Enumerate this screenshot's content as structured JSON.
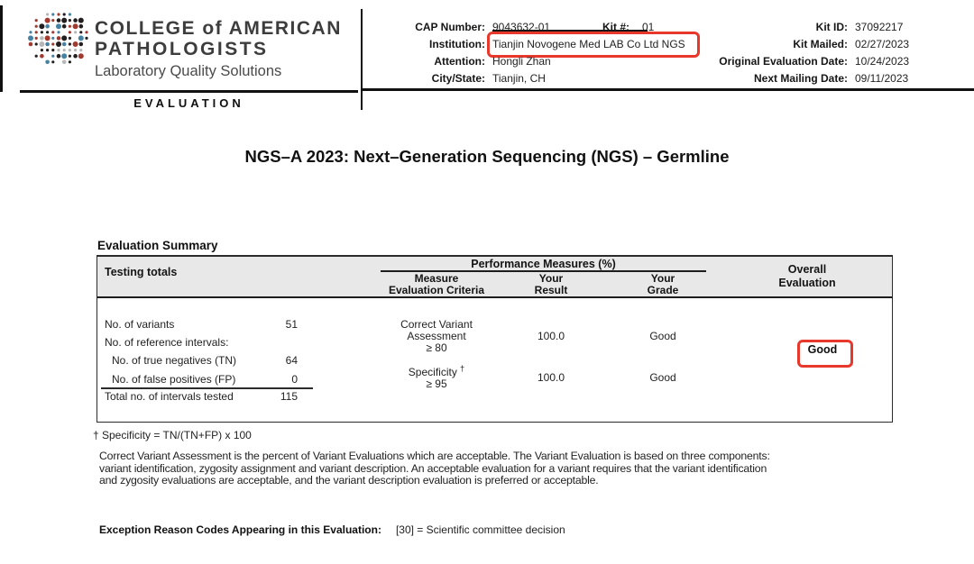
{
  "brand": {
    "line1": "COLLEGE of AMERICAN",
    "line2": "PATHOLOGISTS",
    "tagline": "Laboratory Quality Solutions",
    "section": "EVALUATION",
    "logo_palette": [
      "#231f20",
      "#4682a3",
      "#a23a30",
      "#b7b7b7"
    ]
  },
  "header": {
    "fields_left": [
      {
        "label": "CAP Number:",
        "value": "9043632-01"
      },
      {
        "label": "Institution:",
        "value": "Tianjin Novogene Med LAB Co Ltd NGS"
      },
      {
        "label": "Attention:",
        "value": "Hongli Zhan"
      },
      {
        "label": "City/State:",
        "value": "Tianjin, CH"
      }
    ],
    "kit_number": {
      "label": "Kit #:",
      "value": "01"
    },
    "fields_right": [
      {
        "label": "Kit ID:",
        "value": "37092217"
      },
      {
        "label": "Kit Mailed:",
        "value": "02/27/2023"
      },
      {
        "label": "Original Evaluation Date:",
        "value": "10/24/2023"
      },
      {
        "label": "Next Mailing Date:",
        "value": "09/11/2023"
      }
    ]
  },
  "title": "NGS–A 2023: Next–Generation Sequencing (NGS) – Germline",
  "summary": {
    "heading": "Evaluation Summary",
    "columns": {
      "testing_totals": "Testing totals",
      "performance_group": "Performance Measures (%)",
      "measure_line1": "Measure",
      "measure_line2": "Evaluation Criteria",
      "result_line1": "Your",
      "result_line2": "Result",
      "grade_line1": "Your",
      "grade_line2": "Grade",
      "overall_line1": "Overall",
      "overall_line2": "Evaluation"
    },
    "totals": [
      {
        "label": "No. of variants",
        "value": "51"
      },
      {
        "label": "No. of reference intervals:",
        "value": ""
      },
      {
        "label": "No. of true negatives (TN)",
        "value": "64"
      },
      {
        "label": "No. of false positives (FP)",
        "value": "0"
      },
      {
        "label": "Total no. of intervals tested",
        "value": "115"
      }
    ],
    "measures": [
      {
        "name_line1": "Correct Variant",
        "name_line2": "Assessment",
        "threshold": "≥ 80",
        "result": "100.0",
        "grade": "Good"
      },
      {
        "name_line1": "Specificity",
        "dagger": "†",
        "threshold": "≥ 95",
        "result": "100.0",
        "grade": "Good"
      }
    ],
    "overall_value": "Good"
  },
  "footnote": "† Specificity = TN/(TN+FP) x 100",
  "description_lines": [
    "Correct Variant Assessment is the percent of Variant Evaluations which are acceptable. The Variant Evaluation is based on three components:",
    "variant identification, zygosity assignment and variant description. An acceptable evaluation for a variant requires that the variant identification",
    "and zygosity evaluations are acceptable, and the variant description evaluation is preferred or acceptable."
  ],
  "exception": {
    "label": "Exception Reason Codes Appearing in this Evaluation:",
    "value": "[30] = Scientific committee decision"
  },
  "annotation": {
    "highlight_color": "#e8372b"
  }
}
